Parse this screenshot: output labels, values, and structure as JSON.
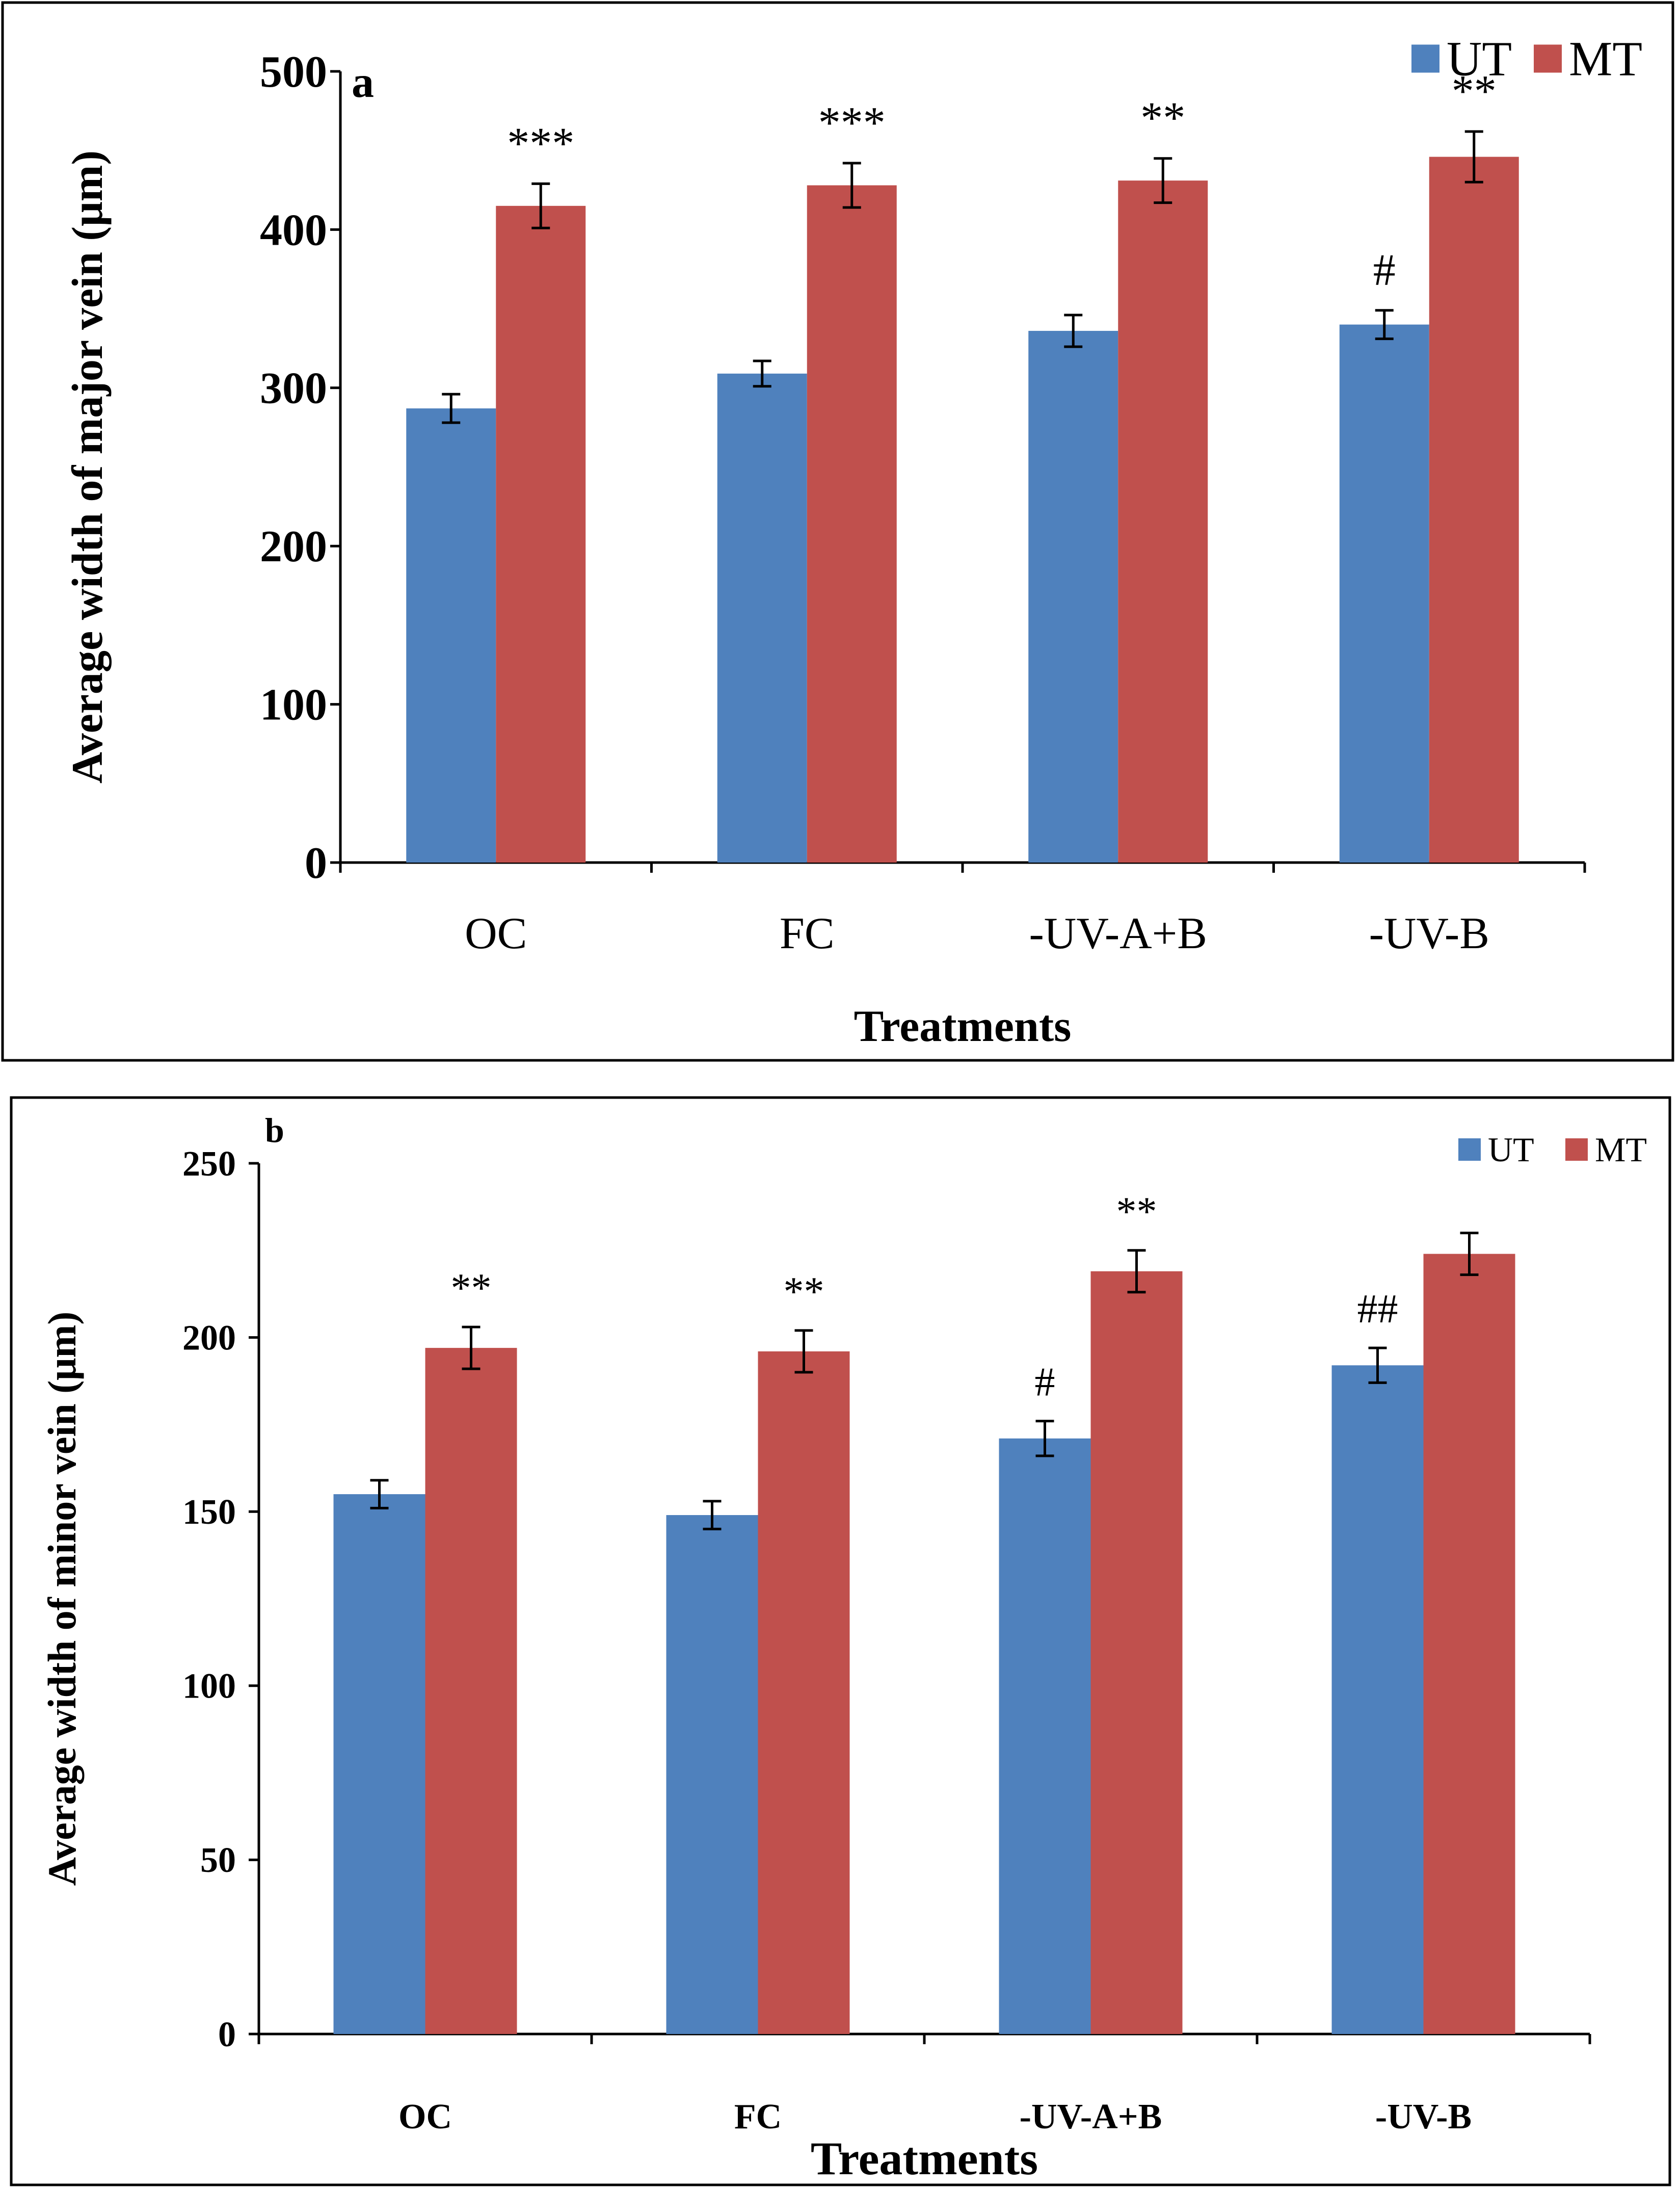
{
  "chart_data": [
    {
      "type": "bar",
      "panel_label": "a",
      "categories": [
        "OC",
        "FC",
        "-UV-A+B",
        "-UV-B"
      ],
      "series": [
        {
          "name": "UT",
          "color": "#4f81bd",
          "values": [
            287,
            309,
            336,
            340
          ],
          "errors": [
            9,
            8,
            10,
            9
          ]
        },
        {
          "name": "MT",
          "color": "#c0504d",
          "values": [
            415,
            428,
            431,
            446
          ],
          "errors": [
            14,
            14,
            14,
            16
          ]
        }
      ],
      "annotations": {
        "UT": [
          "",
          "",
          "",
          "#"
        ],
        "MT": [
          "***",
          "***",
          "**",
          "**"
        ]
      },
      "xlabel": "Treatments",
      "ylabel": "Average width of major vein (μm)",
      "ylim": [
        0,
        500
      ],
      "yticks": [
        0,
        100,
        200,
        300,
        400,
        500
      ],
      "legend_position": "top-right"
    },
    {
      "type": "bar",
      "panel_label": "b",
      "categories": [
        "OC",
        "FC",
        "-UV-A+B",
        "-UV-B"
      ],
      "series": [
        {
          "name": "UT",
          "color": "#4f81bd",
          "values": [
            155,
            149,
            171,
            192
          ],
          "errors": [
            4,
            4,
            5,
            5
          ]
        },
        {
          "name": "MT",
          "color": "#c0504d",
          "values": [
            197,
            196,
            219,
            224
          ],
          "errors": [
            6,
            6,
            6,
            6
          ]
        }
      ],
      "annotations": {
        "UT": [
          "",
          "",
          "#",
          "##"
        ],
        "MT": [
          "**",
          "**",
          "**",
          ""
        ]
      },
      "xlabel": "Treatments",
      "ylabel": "Average width of minor vein (μm)",
      "ylim": [
        0,
        250
      ],
      "yticks": [
        0,
        50,
        100,
        150,
        200,
        250
      ],
      "legend_position": "top-right"
    }
  ]
}
